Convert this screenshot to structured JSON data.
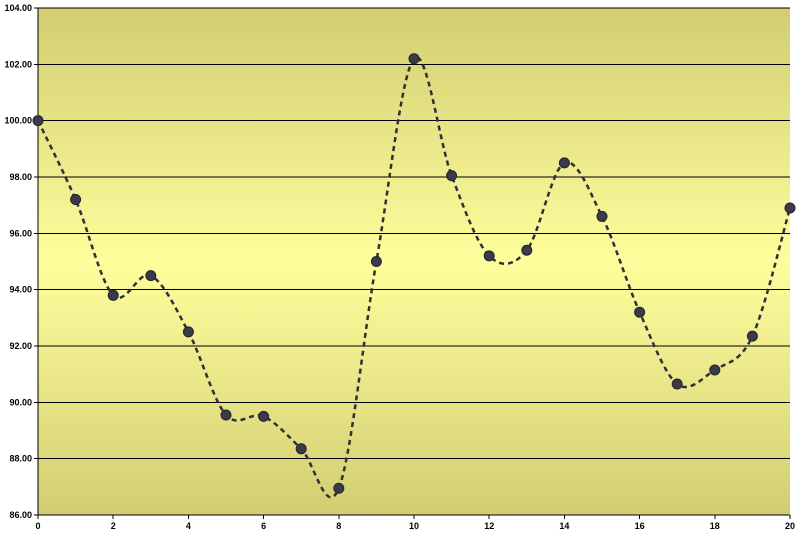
{
  "chart_data": {
    "type": "line",
    "title": "",
    "xlabel": "",
    "ylabel": "",
    "xlim": [
      0,
      20
    ],
    "ylim": [
      86,
      104
    ],
    "grid": true,
    "legend": "none",
    "x_ticks": [
      0,
      2,
      4,
      6,
      8,
      10,
      12,
      14,
      16,
      18,
      20
    ],
    "x_tick_labels": [
      "0",
      "2",
      "4",
      "6",
      "8",
      "10",
      "12",
      "14",
      "16",
      "18",
      "20"
    ],
    "y_ticks": [
      86,
      88,
      90,
      92,
      94,
      96,
      98,
      100,
      102,
      104
    ],
    "y_tick_labels": [
      "86.00",
      "88.00",
      "90.00",
      "92.00",
      "94.00",
      "96.00",
      "98.00",
      "100.00",
      "102.00",
      "104.00"
    ],
    "series": [
      {
        "x": [
          0,
          1,
          2,
          3,
          4,
          5,
          6,
          7,
          8,
          9,
          10,
          11,
          12,
          13,
          14,
          15,
          16,
          17,
          18,
          19,
          20
        ],
        "values": [
          100.0,
          97.2,
          93.8,
          94.5,
          92.5,
          89.55,
          89.5,
          88.35,
          86.95,
          95.0,
          102.2,
          98.05,
          95.2,
          95.4,
          98.5,
          96.6,
          93.2,
          90.65,
          91.15,
          92.35,
          96.9
        ]
      }
    ],
    "colors": {
      "band_edge": "#d2cd72",
      "band_center": "#fefe9c",
      "gridline": "#000000",
      "line": "#2f2f38",
      "marker": "#3a3a4a"
    }
  }
}
